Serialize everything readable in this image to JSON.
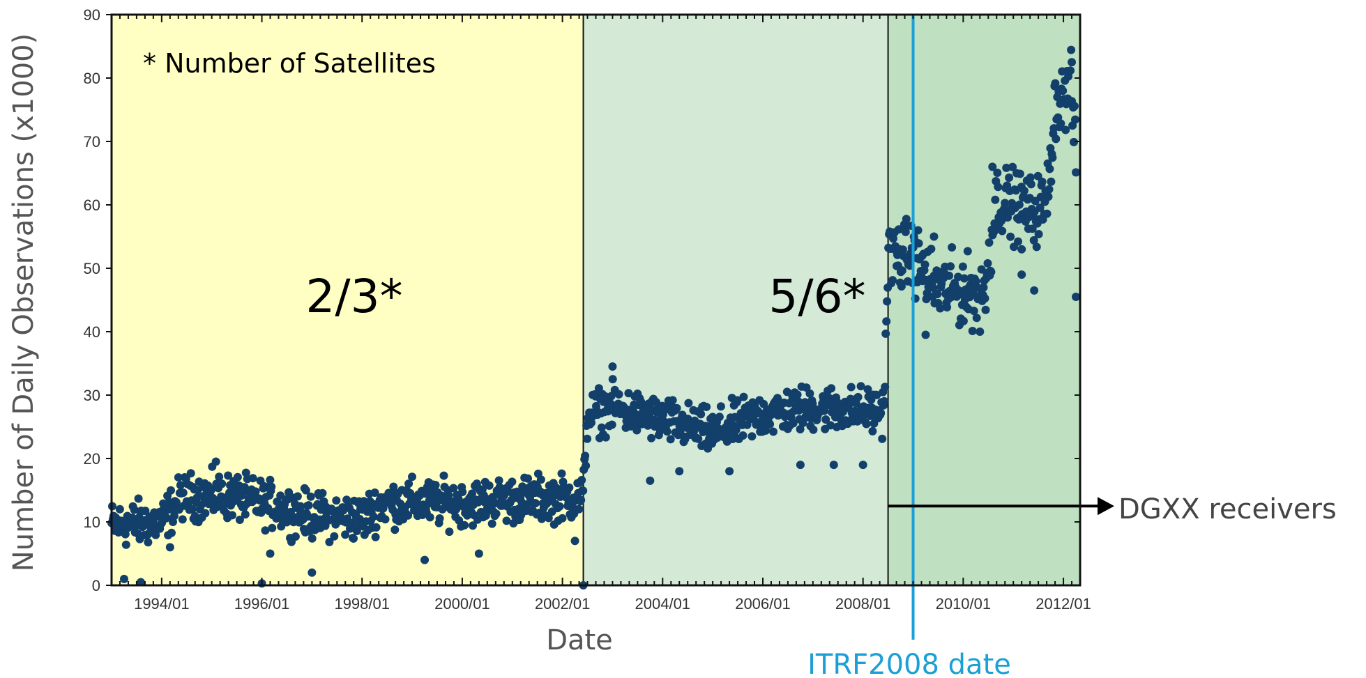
{
  "chart_data": {
    "type": "scatter",
    "xlabel": "Date",
    "ylabel": "Number of Daily Observations (x1000)",
    "x_ticks": [
      "1994/01",
      "1996/01",
      "1998/01",
      "2000/01",
      "2002/01",
      "2004/01",
      "2006/01",
      "2008/01",
      "2010/01",
      "2012/01"
    ],
    "y_ticks": [
      "0",
      "10",
      "20",
      "30",
      "40",
      "50",
      "60",
      "70",
      "80",
      "90"
    ],
    "xlim": [
      "1993/01",
      "2012/05"
    ],
    "ylim": [
      0,
      90
    ],
    "grid": false,
    "regions": [
      {
        "label": "2/3*",
        "from": "1993/01",
        "to": "2002/06",
        "color": "#ffffc4"
      },
      {
        "label": "5/6*",
        "from": "2002/06",
        "to": "2008/07",
        "color": "#d4ead7"
      },
      {
        "label": "",
        "from": "2008/07",
        "to": "2012/05",
        "color": "#c0e0c2"
      }
    ],
    "note": "* Number of Satellites",
    "annotations": {
      "itrf_label": "ITRF2008 date",
      "itrf_date": "2009/01",
      "dgxx_label": "DGXX receivers",
      "dgxx_level": 12.5
    },
    "series": [
      {
        "color": "#133f6b",
        "trend": [
          {
            "x": "1993/01",
            "y": 9.5
          },
          {
            "x": "1994/01",
            "y": 10
          },
          {
            "x": "1994/06",
            "y": 14
          },
          {
            "x": "1995/06",
            "y": 14
          },
          {
            "x": "1996/01",
            "y": 13
          },
          {
            "x": "1997/01",
            "y": 11
          },
          {
            "x": "1998/01",
            "y": 10.5
          },
          {
            "x": "1998/06",
            "y": 13
          },
          {
            "x": "2000/01",
            "y": 13
          },
          {
            "x": "2001/01",
            "y": 13.5
          },
          {
            "x": "2002/06",
            "y": 14
          },
          {
            "x": "2002/07",
            "y": 27
          },
          {
            "x": "2003/01",
            "y": 28
          },
          {
            "x": "2004/01",
            "y": 26
          },
          {
            "x": "2005/01",
            "y": 24
          },
          {
            "x": "2006/01",
            "y": 27
          },
          {
            "x": "2007/01",
            "y": 28
          },
          {
            "x": "2008/06",
            "y": 27.5
          },
          {
            "x": "2008/07",
            "y": 52
          },
          {
            "x": "2009/01",
            "y": 52
          },
          {
            "x": "2009/06",
            "y": 47
          },
          {
            "x": "2010/06",
            "y": 46
          },
          {
            "x": "2010/09",
            "y": 61
          },
          {
            "x": "2011/06",
            "y": 59
          },
          {
            "x": "2011/09",
            "y": 60
          },
          {
            "x": "2011/11",
            "y": 76
          },
          {
            "x": "2012/03",
            "y": 78
          },
          {
            "x": "2012/04",
            "y": 67
          }
        ],
        "spread": 2.5,
        "outliers": [
          {
            "x": "1993/04",
            "y": 1
          },
          {
            "x": "1993/08",
            "y": 0.5
          },
          {
            "x": "1996/01",
            "y": 0.3
          },
          {
            "x": "1997/01",
            "y": 2
          },
          {
            "x": "1995/02",
            "y": 19.5
          },
          {
            "x": "1994/03",
            "y": 6
          },
          {
            "x": "1996/03",
            "y": 5
          },
          {
            "x": "1999/04",
            "y": 4
          },
          {
            "x": "2000/05",
            "y": 5
          },
          {
            "x": "2002/06",
            "y": 0
          },
          {
            "x": "2002/04",
            "y": 7
          },
          {
            "x": "2003/01",
            "y": 34.5
          },
          {
            "x": "2003/10",
            "y": 16.5
          },
          {
            "x": "2004/05",
            "y": 18
          },
          {
            "x": "2005/05",
            "y": 18
          },
          {
            "x": "2006/10",
            "y": 19
          },
          {
            "x": "2007/06",
            "y": 19
          },
          {
            "x": "2008/01",
            "y": 19
          },
          {
            "x": "2009/04",
            "y": 39.5
          },
          {
            "x": "2010/05",
            "y": 40
          },
          {
            "x": "2011/03",
            "y": 49
          },
          {
            "x": "2011/06",
            "y": 46.5
          },
          {
            "x": "2011/03",
            "y": 53
          },
          {
            "x": "2012/04",
            "y": 45.5
          },
          {
            "x": "2012/03",
            "y": 82.5
          },
          {
            "x": "2010/08",
            "y": 66
          },
          {
            "x": "2009/06",
            "y": 55
          }
        ]
      }
    ]
  }
}
